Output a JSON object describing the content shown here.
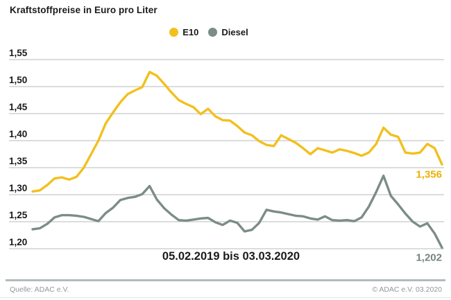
{
  "header": {
    "title": "Kraftstoffpreise in Euro pro Liter"
  },
  "legend": {
    "items": [
      {
        "label": "E10",
        "color": "#f2c01d"
      },
      {
        "label": "Diesel",
        "color": "#7c8c88"
      }
    ]
  },
  "chart_data": {
    "type": "line",
    "title": "Kraftstoffpreise in Euro pro Liter",
    "period_label": "05.02.2019 bis 03.03.2020",
    "period_start": "05.02.2019",
    "period_end": "03.03.2020",
    "unit": "Euro pro Liter",
    "ylim": [
      1.2,
      1.55
    ],
    "grid": true,
    "legend_position": "top-center",
    "y_ticks": [
      {
        "label": "1,55",
        "value": 1.55
      },
      {
        "label": "1,50",
        "value": 1.5
      },
      {
        "label": "1,45",
        "value": 1.45
      },
      {
        "label": "1,40",
        "value": 1.4
      },
      {
        "label": "1,35",
        "value": 1.35
      },
      {
        "label": "1,30",
        "value": 1.3
      },
      {
        "label": "1,25",
        "value": 1.25
      },
      {
        "label": "1,20",
        "value": 1.2
      }
    ],
    "series": [
      {
        "name": "E10",
        "color": "#f2c01d",
        "end_label": "1,356",
        "end_label_color": "#eab200",
        "values": [
          1.306,
          1.308,
          1.318,
          1.33,
          1.332,
          1.328,
          1.333,
          1.35,
          1.375,
          1.4,
          1.432,
          1.452,
          1.471,
          1.486,
          1.493,
          1.499,
          1.527,
          1.52,
          1.505,
          1.489,
          1.475,
          1.468,
          1.462,
          1.449,
          1.459,
          1.445,
          1.438,
          1.437,
          1.427,
          1.415,
          1.41,
          1.399,
          1.392,
          1.39,
          1.41,
          1.403,
          1.396,
          1.386,
          1.375,
          1.386,
          1.382,
          1.378,
          1.384,
          1.381,
          1.377,
          1.372,
          1.378,
          1.394,
          1.424,
          1.411,
          1.407,
          1.378,
          1.376,
          1.378,
          1.394,
          1.386,
          1.356
        ]
      },
      {
        "name": "Diesel",
        "color": "#7c8c88",
        "end_label": "1,202",
        "end_label_color": "#75857f",
        "values": [
          1.236,
          1.238,
          1.246,
          1.258,
          1.262,
          1.262,
          1.261,
          1.259,
          1.255,
          1.251,
          1.266,
          1.276,
          1.29,
          1.294,
          1.296,
          1.301,
          1.316,
          1.291,
          1.275,
          1.263,
          1.253,
          1.252,
          1.254,
          1.256,
          1.257,
          1.249,
          1.244,
          1.252,
          1.248,
          1.232,
          1.235,
          1.248,
          1.272,
          1.269,
          1.267,
          1.264,
          1.261,
          1.26,
          1.256,
          1.254,
          1.26,
          1.253,
          1.252,
          1.253,
          1.251,
          1.258,
          1.278,
          1.305,
          1.335,
          1.298,
          1.282,
          1.265,
          1.25,
          1.241,
          1.247,
          1.228,
          1.202
        ]
      }
    ]
  },
  "footer": {
    "source": "Quelle: ADAC e.V.",
    "copyright": "© ADAC e.V.  03.2020"
  }
}
